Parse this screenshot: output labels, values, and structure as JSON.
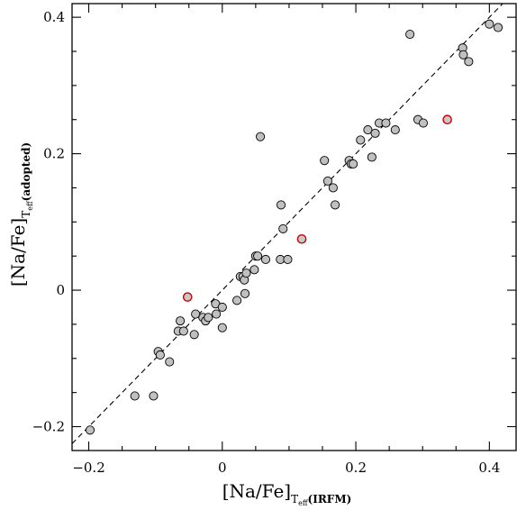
{
  "chart_data": {
    "type": "scatter",
    "xlabel": {
      "main": "[Na/Fe]",
      "sub": "T",
      "subsub": "eff",
      "tail": "(IRFM)"
    },
    "ylabel": {
      "main": "[Na/Fe]",
      "sub": "T",
      "subsub": "eff",
      "tail": "(adopted)"
    },
    "xlim": [
      -0.225,
      0.44
    ],
    "ylim": [
      -0.235,
      0.42
    ],
    "xticks": [
      -0.2,
      0,
      0.2,
      0.4
    ],
    "xtick_labels": [
      "−0.2",
      "0",
      "0.2",
      "0.4"
    ],
    "yticks": [
      -0.2,
      0,
      0.2,
      0.4
    ],
    "ytick_labels": [
      "−0.2",
      "0",
      "0.2",
      "0.4"
    ],
    "grid": false,
    "reference_line": {
      "style": "dashed",
      "slope": 1,
      "intercept": 0,
      "color": "#000000"
    },
    "series": [
      {
        "marker_fill": "#c0c0c0",
        "marker_edge": "#000000",
        "x": [
          -0.198,
          -0.131,
          -0.103,
          -0.096,
          -0.093,
          -0.079,
          -0.066,
          -0.063,
          -0.058,
          -0.042,
          -0.04,
          -0.029,
          -0.025,
          -0.021,
          -0.01,
          -0.009,
          0.0,
          0.0,
          0.022,
          0.027,
          0.031,
          0.033,
          0.034,
          0.036,
          0.048,
          0.05,
          0.053,
          0.057,
          0.065,
          0.087,
          0.088,
          0.091,
          0.098,
          0.153,
          0.158,
          0.166,
          0.169,
          0.19,
          0.193,
          0.196,
          0.207,
          0.218,
          0.224,
          0.229,
          0.235,
          0.245,
          0.259,
          0.281,
          0.293,
          0.301,
          0.36,
          0.361,
          0.369,
          0.4,
          0.413
        ],
        "y": [
          -0.205,
          -0.155,
          -0.155,
          -0.09,
          -0.095,
          -0.105,
          -0.06,
          -0.045,
          -0.06,
          -0.065,
          -0.035,
          -0.04,
          -0.045,
          -0.04,
          -0.02,
          -0.035,
          -0.025,
          -0.055,
          -0.015,
          0.02,
          0.02,
          0.015,
          -0.005,
          0.025,
          0.03,
          0.05,
          0.05,
          0.225,
          0.045,
          0.045,
          0.125,
          0.09,
          0.045,
          0.19,
          0.16,
          0.15,
          0.125,
          0.19,
          0.185,
          0.185,
          0.22,
          0.235,
          0.195,
          0.23,
          0.245,
          0.245,
          0.235,
          0.375,
          0.25,
          0.245,
          0.355,
          0.345,
          0.335,
          0.39,
          0.385
        ]
      },
      {
        "marker_fill": "#c8c8c8",
        "marker_edge": "#cc0000",
        "x": [
          -0.052,
          0.119,
          0.337
        ],
        "y": [
          -0.01,
          0.075,
          0.25
        ]
      }
    ]
  }
}
